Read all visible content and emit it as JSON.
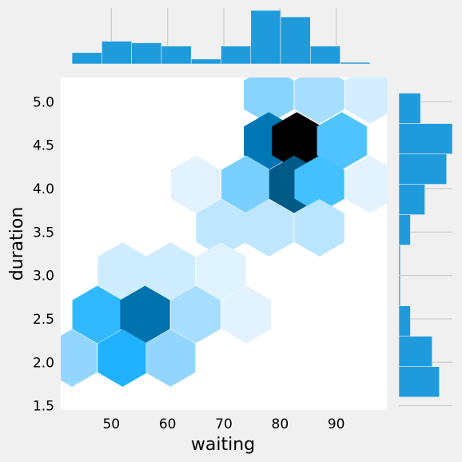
{
  "chart_data": {
    "type": "hexbin-jointplot",
    "xlabel": "waiting",
    "ylabel": "duration",
    "xlim": [
      41,
      99
    ],
    "ylim": [
      1.45,
      5.28
    ],
    "x_ticks": [
      50,
      60,
      70,
      80,
      90
    ],
    "y_ticks": [
      1.5,
      2.0,
      2.5,
      3.0,
      3.5,
      4.0,
      4.5,
      5.0
    ],
    "hexbin": {
      "colormap": "light-blue to black",
      "cells": [
        {
          "x": 78.0,
          "y": 5.08,
          "density": 0.38
        },
        {
          "x": 87.0,
          "y": 5.08,
          "density": 0.28
        },
        {
          "x": 96.0,
          "y": 5.08,
          "density": 0.1
        },
        {
          "x": 78.0,
          "y": 4.55,
          "density": 0.85
        },
        {
          "x": 83.0,
          "y": 4.55,
          "density": 1.0
        },
        {
          "x": 91.0,
          "y": 4.55,
          "density": 0.52
        },
        {
          "x": 65.0,
          "y": 4.05,
          "density": 0.05
        },
        {
          "x": 74.0,
          "y": 4.05,
          "density": 0.42
        },
        {
          "x": 82.5,
          "y": 4.05,
          "density": 0.92
        },
        {
          "x": 87.0,
          "y": 4.05,
          "density": 0.55
        },
        {
          "x": 96.0,
          "y": 4.05,
          "density": 0.05
        },
        {
          "x": 69.5,
          "y": 3.55,
          "density": 0.18
        },
        {
          "x": 78.0,
          "y": 3.55,
          "density": 0.18
        },
        {
          "x": 87.0,
          "y": 3.55,
          "density": 0.2
        },
        {
          "x": 52.0,
          "y": 3.05,
          "density": 0.12
        },
        {
          "x": 60.5,
          "y": 3.05,
          "density": 0.12
        },
        {
          "x": 69.5,
          "y": 3.05,
          "density": 0.06
        },
        {
          "x": 47.5,
          "y": 2.55,
          "density": 0.62
        },
        {
          "x": 56.0,
          "y": 2.55,
          "density": 0.86
        },
        {
          "x": 65.0,
          "y": 2.55,
          "density": 0.28
        },
        {
          "x": 74.0,
          "y": 2.55,
          "density": 0.05
        },
        {
          "x": 43.0,
          "y": 2.05,
          "density": 0.36
        },
        {
          "x": 52.0,
          "y": 2.05,
          "density": 0.68
        },
        {
          "x": 60.5,
          "y": 2.05,
          "density": 0.36
        }
      ]
    },
    "marginal_x": {
      "bin_edges": [
        43,
        48.3,
        53.6,
        58.9,
        64.2,
        69.5,
        74.8,
        80.1,
        85.4,
        90.7,
        96
      ],
      "counts": [
        7,
        14,
        13,
        11,
        3,
        11,
        33,
        29,
        11,
        1
      ]
    },
    "marginal_y": {
      "bin_edges": [
        1.6,
        1.95,
        2.3,
        2.65,
        3.0,
        3.35,
        3.7,
        4.05,
        4.4,
        4.75,
        5.1
      ],
      "counts": [
        28,
        23,
        8,
        1,
        1,
        8,
        18,
        33,
        37,
        15
      ]
    },
    "colors": {
      "bar": "#1f9bdb",
      "background": "#f0f0f0",
      "grid": "#cbcbcb"
    }
  }
}
